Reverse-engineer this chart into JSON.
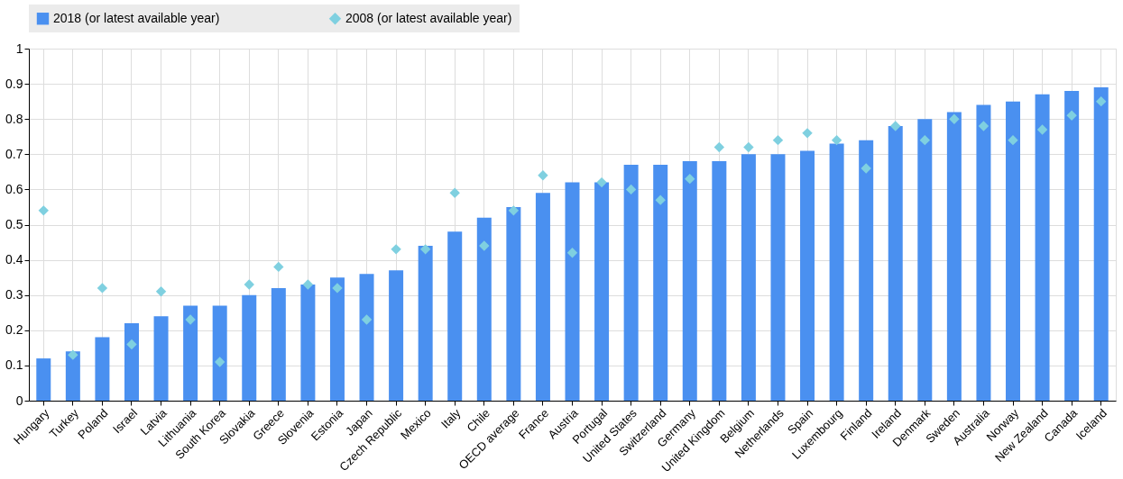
{
  "chart_data": {
    "type": "bar",
    "categories": [
      "Hungary",
      "Turkey",
      "Poland",
      "Israel",
      "Latvia",
      "Lithuania",
      "South Korea",
      "Slovakia",
      "Greece",
      "Slovenia",
      "Estonia",
      "Japan",
      "Czech Republic",
      "Mexico",
      "Italy",
      "Chile",
      "OECD average",
      "France",
      "Austria",
      "Portugal",
      "United States",
      "Switzerland",
      "Germany",
      "United Kingdom",
      "Belgium",
      "Netherlands",
      "Spain",
      "Luxembourg",
      "Finland",
      "Ireland",
      "Denmark",
      "Sweden",
      "Australia",
      "Norway",
      "New Zealand",
      "Canada",
      "Iceland"
    ],
    "series": [
      {
        "name": "2018 (or latest available year)",
        "color": "#4a90f0",
        "values": [
          0.12,
          0.14,
          0.18,
          0.22,
          0.24,
          0.27,
          0.27,
          0.3,
          0.32,
          0.33,
          0.35,
          0.36,
          0.37,
          0.44,
          0.48,
          0.52,
          0.55,
          0.59,
          0.62,
          0.62,
          0.67,
          0.67,
          0.68,
          0.68,
          0.7,
          0.7,
          0.71,
          0.73,
          0.74,
          0.78,
          0.8,
          0.82,
          0.84,
          0.85,
          0.87,
          0.88,
          0.89
        ]
      },
      {
        "name": "2008 (or latest available year)",
        "type": "scatter",
        "marker": "diamond",
        "color": "#7fd0e0",
        "values": [
          0.54,
          0.13,
          0.32,
          0.16,
          0.31,
          0.23,
          0.11,
          0.33,
          0.38,
          0.33,
          0.32,
          0.23,
          0.43,
          0.43,
          0.59,
          0.44,
          0.54,
          0.64,
          0.42,
          0.62,
          0.6,
          0.57,
          0.63,
          0.72,
          0.72,
          0.74,
          0.76,
          0.74,
          0.66,
          0.78,
          0.74,
          0.8,
          0.78,
          0.74,
          0.77,
          0.81,
          0.85
        ]
      }
    ],
    "ylim": [
      0,
      1
    ],
    "yticks": [
      0,
      0.1,
      0.2,
      0.3,
      0.4,
      0.5,
      0.6,
      0.7,
      0.8,
      0.9,
      1
    ],
    "grid": true,
    "legend": "top"
  }
}
